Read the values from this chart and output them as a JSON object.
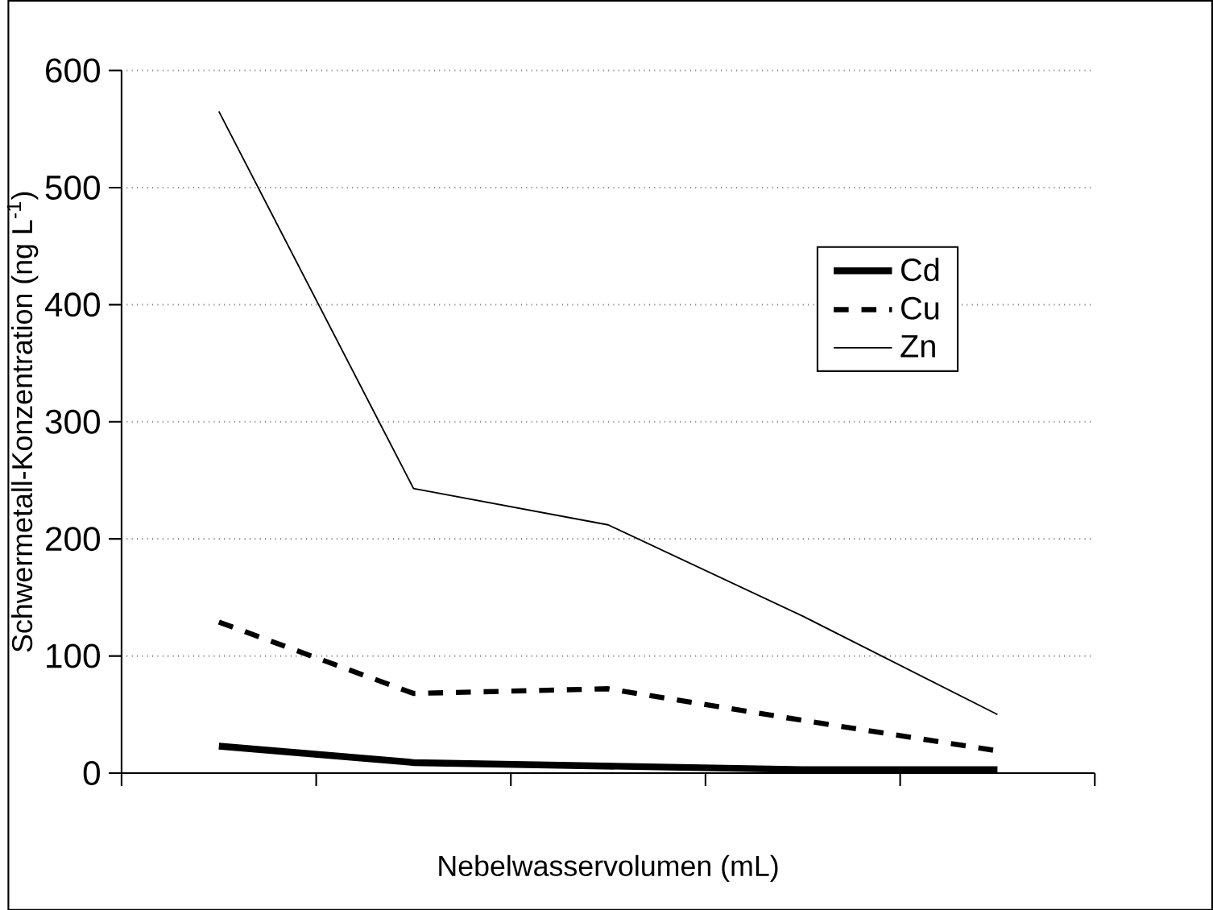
{
  "chart_data": {
    "type": "line",
    "xlabel": "Nebelwasservolumen (mL)",
    "ylabel": "Schwermetall-Konzentration (ng L$^{-1}$)",
    "categories": [
      null,
      null,
      null,
      null,
      null
    ],
    "series": [
      {
        "name": "Cd",
        "color": "#000000",
        "line_style": "solid",
        "values": [
          23,
          9,
          6,
          3,
          3
        ]
      },
      {
        "name": "Cu",
        "color": "#000000",
        "line_style": "dashed",
        "values": [
          129,
          68,
          72,
          45,
          19
        ]
      },
      {
        "name": "Zn",
        "color": "#000000",
        "line_style": "solid",
        "values": [
          565,
          243,
          212,
          134,
          50
        ]
      }
    ],
    "ylim": [
      0,
      600
    ],
    "yticks": [
      0,
      100,
      200,
      300,
      400,
      500,
      600
    ],
    "grid": "y",
    "legend": "right",
    "marker": "none"
  }
}
